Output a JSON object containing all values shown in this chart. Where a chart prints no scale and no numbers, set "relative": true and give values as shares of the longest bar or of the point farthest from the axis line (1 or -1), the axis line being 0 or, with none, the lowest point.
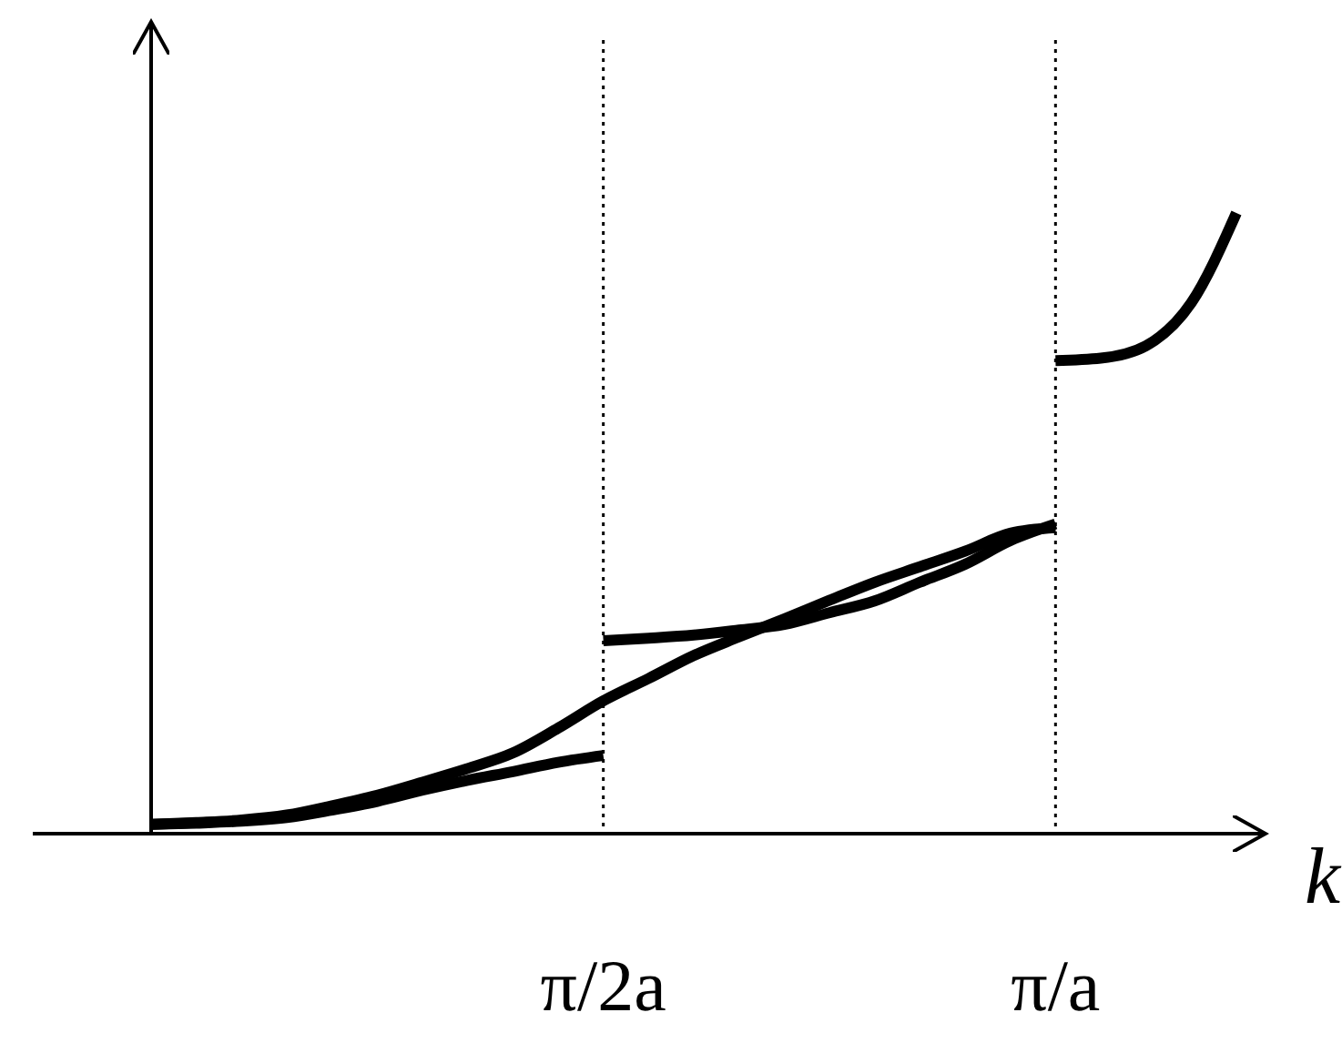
{
  "chart_data": {
    "type": "line",
    "relative": true,
    "xlabel": "k",
    "grid": "x",
    "line_style": "solid",
    "categories": [
      null,
      null,
      null,
      null,
      null,
      null,
      null,
      null,
      null,
      null,
      "π/2a",
      null,
      null,
      null,
      null,
      null,
      null,
      null,
      null,
      null,
      "π/a",
      null,
      null,
      null,
      null
    ],
    "series": [
      {
        "color": "#000000",
        "values": [
          0.015,
          0.017,
          0.02,
          0.026,
          0.038,
          0.052,
          0.07,
          0.086,
          0.1,
          0.115,
          0.126,
          null,
          null,
          null,
          null,
          null,
          null,
          null,
          null,
          null,
          null,
          null,
          null,
          null,
          null
        ]
      },
      {
        "color": "#000000",
        "values": [
          0.015,
          0.018,
          0.022,
          0.03,
          0.045,
          0.062,
          0.083,
          0.105,
          0.13,
          0.17,
          0.214,
          0.25,
          0.287,
          0.317,
          0.346,
          0.376,
          0.405,
          0.43,
          0.455,
          0.484,
          0.493,
          null,
          null,
          null,
          null
        ]
      },
      {
        "color": "#000000",
        "values": [
          null,
          null,
          null,
          null,
          null,
          null,
          null,
          null,
          null,
          null,
          0.311,
          0.315,
          0.32,
          0.328,
          0.337,
          0.356,
          0.375,
          0.405,
          0.434,
          0.472,
          0.499,
          null,
          null,
          null,
          null
        ]
      },
      {
        "color": "#000000",
        "values": [
          null,
          null,
          null,
          null,
          null,
          null,
          null,
          null,
          null,
          null,
          null,
          null,
          null,
          null,
          null,
          null,
          null,
          null,
          null,
          null,
          0.762,
          0.766,
          0.786,
          0.855,
          1
        ]
      }
    ]
  }
}
